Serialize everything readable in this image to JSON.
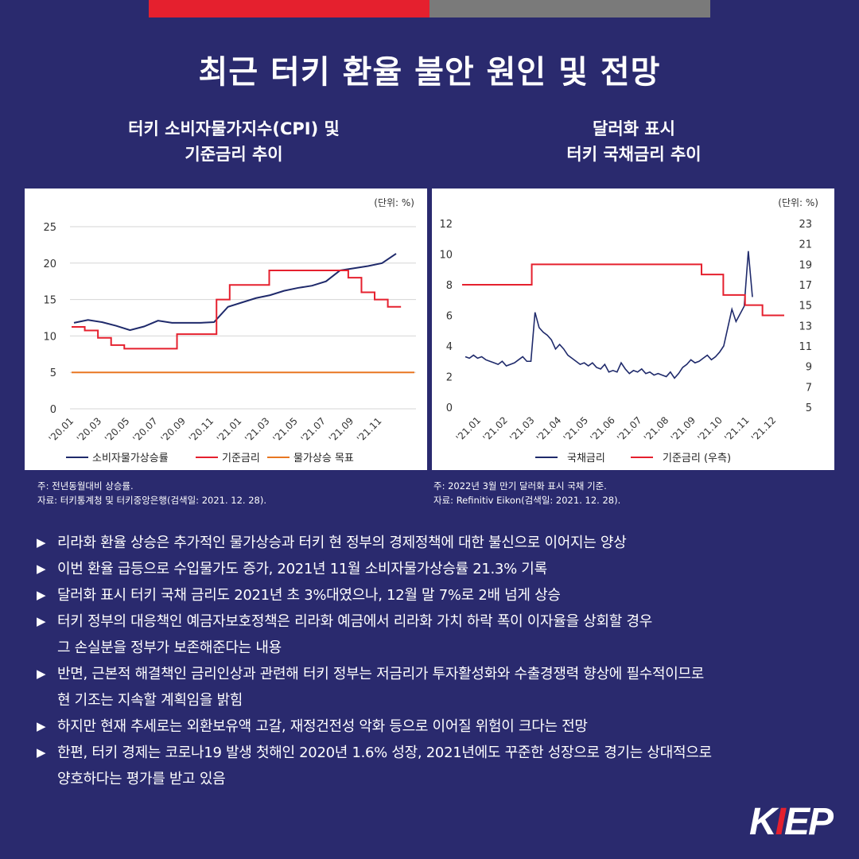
{
  "main_title": "최근 터키 환율 불안 원인 및 전망",
  "chart_titles": {
    "left_line1": "터키 소비자물가지수(CPI) 및",
    "left_line2": "기준금리 추이",
    "right_line1": "달러화 표시",
    "right_line2": "터키 국채금리 추이"
  },
  "notes": {
    "left_1": "주: 전년동월대비 상승률.",
    "left_2": "자료: 터키통계청 및 터키중앙은행(검색일: 2021. 12. 28).",
    "right_1": "주:  2022년 3월 만기 달러화 표시 국채 기준.",
    "right_2": "자료: Refinitiv Eikon(검색일: 2021. 12. 28)."
  },
  "bullets": [
    "리라화 환율 상승은 추가적인 물가상승과 터키 현 정부의 경제정책에 대한 불신으로 이어지는 양상",
    "이번 환율 급등으로 수입물가도 증가, 2021년 11월 소비자물가상승률 21.3% 기록",
    "달러화 표시 터키 국채  금리도 2021년 초 3%대였으나, 12월 말 7%로 2배 넘게 상승",
    "터키 정부의 대응책인 예금자보호정책은 리라화 예금에서 리라화 가치 하락 폭이 이자율을 상회할 경우",
    "그 손실분을 정부가 보존해준다는 내용",
    "반면, 근본적 해결책인 금리인상과 관련해 터키 정부는 저금리가 투자활성화와 수출경쟁력 향상에 필수적이므로",
    "현 기조는 지속할 계획임을 밝힘",
    "하지만 현재 추세로는 외환보유액 고갈, 재정건전성 악화 등으로 이어질 위험이 크다는 전망",
    "한편, 터키 경제는 코로나19 발생 첫해인 2020년 1.6% 성장, 2021년에도 꾸준한 성장으로 경기는 상대적으로",
    "양호하다는 평가를 받고 있음"
  ],
  "bullet_arrow": "▶",
  "logo": {
    "pre": "K",
    "mid": "I",
    "post": "EP"
  },
  "colors": {
    "background": "#2a2a6e",
    "red": "#e5202e",
    "navy": "#1f2a6b",
    "orange": "#e87722"
  },
  "chart_data": [
    {
      "type": "line",
      "unit_label": "(단위: %)",
      "ylim": [
        0,
        25
      ],
      "yticks": [
        0,
        5,
        10,
        15,
        20,
        25
      ],
      "grid": true,
      "legend_position": "bottom",
      "x_tick_labels": [
        "'20.01",
        "'20.03",
        "'20.05",
        "'20.07",
        "'20.09",
        "'20.11",
        "'21.01",
        "'21.03",
        "'21.05",
        "'21.07",
        "'21.09",
        "'21.11"
      ],
      "series": [
        {
          "name": "소비자물가상승률",
          "color": "#1f2a6b",
          "step": false,
          "values": [
            11.8,
            12.2,
            11.9,
            11.4,
            10.8,
            11.3,
            12.1,
            11.8,
            11.8,
            11.8,
            11.9,
            14.0,
            14.6,
            15.2,
            15.6,
            16.2,
            16.6,
            16.9,
            17.5,
            19.0,
            19.3,
            19.6,
            20.0,
            21.3
          ]
        },
        {
          "name": "기준금리",
          "color": "#e5202e",
          "step": true,
          "values": [
            11.25,
            10.75,
            9.75,
            8.75,
            8.25,
            8.25,
            8.25,
            8.25,
            10.25,
            10.25,
            10.25,
            15.0,
            17.0,
            17.0,
            17.0,
            19.0,
            19.0,
            19.0,
            19.0,
            19.0,
            19.0,
            18.0,
            16.0,
            15.0,
            14.0
          ]
        },
        {
          "name": "물가상승 목표",
          "color": "#e87722",
          "step": false,
          "values": [
            5,
            5,
            5,
            5,
            5,
            5,
            5,
            5,
            5,
            5,
            5,
            5,
            5,
            5,
            5,
            5,
            5,
            5,
            5,
            5,
            5,
            5,
            5,
            5,
            5
          ]
        }
      ]
    },
    {
      "type": "line",
      "unit_label": "(단위: %)",
      "ylim": [
        0,
        12
      ],
      "yticks": [
        0,
        2,
        4,
        6,
        8,
        10,
        12
      ],
      "y2ticks": [
        5,
        7,
        9,
        11,
        13,
        15,
        17,
        19,
        21,
        23
      ],
      "grid": false,
      "legend_position": "bottom",
      "x_tick_labels": [
        "'21.01",
        "'21.02",
        "'21.03",
        "'21.04",
        "'21.05",
        "'21.06",
        "'21.07",
        "'21.08",
        "'21.09",
        "'21.10",
        "'21.11",
        "'21.12"
      ],
      "series": [
        {
          "name": "국채금리",
          "color": "#1f2a6b",
          "axis": "left",
          "values": [
            3.3,
            3.2,
            3.4,
            3.2,
            3.3,
            3.1,
            3.0,
            2.9,
            2.8,
            3.0,
            2.7,
            2.8,
            2.9,
            3.1,
            3.3,
            3.0,
            3.0,
            6.2,
            5.2,
            4.9,
            4.7,
            4.4,
            3.8,
            4.1,
            3.8,
            3.4,
            3.2,
            3.0,
            2.8,
            2.9,
            2.7,
            2.9,
            2.6,
            2.5,
            2.8,
            2.3,
            2.4,
            2.3,
            2.9,
            2.5,
            2.2,
            2.4,
            2.3,
            2.5,
            2.2,
            2.3,
            2.1,
            2.2,
            2.1,
            2.0,
            2.3,
            1.9,
            2.2,
            2.6,
            2.8,
            3.1,
            2.9,
            3.0,
            3.2,
            3.4,
            3.1,
            3.3,
            3.6,
            4.0,
            5.2,
            6.4,
            5.6,
            6.1,
            6.6,
            10.2,
            7.2
          ]
        },
        {
          "name": "기준금리 (우측)",
          "color": "#e5202e",
          "axis": "right",
          "values": [
            17,
            17,
            17,
            17,
            17,
            17,
            17,
            17,
            17,
            17,
            17,
            17,
            17,
            17,
            17,
            17,
            19,
            19,
            19,
            19,
            19,
            19,
            19,
            19,
            19,
            19,
            19,
            19,
            19,
            19,
            19,
            19,
            19,
            19,
            19,
            19,
            19,
            19,
            19,
            19,
            19,
            19,
            19,
            19,
            19,
            19,
            19,
            19,
            19,
            19,
            19,
            19,
            19,
            19,
            19,
            18,
            18,
            18,
            18,
            18,
            16,
            16,
            16,
            16,
            16,
            15,
            15,
            15,
            15,
            14,
            14,
            14,
            14,
            14
          ]
        }
      ]
    }
  ]
}
